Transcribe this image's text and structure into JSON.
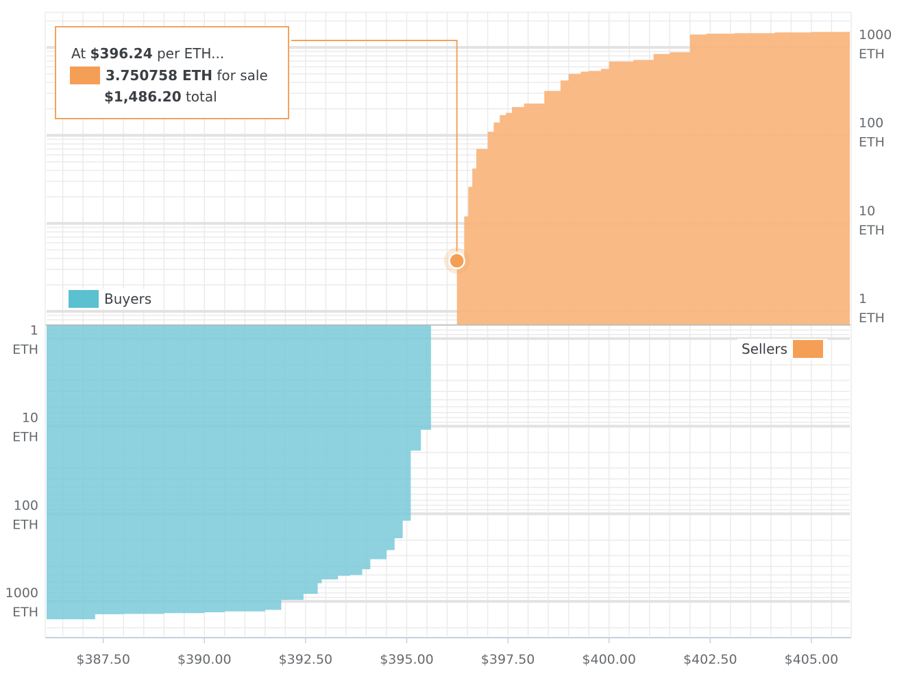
{
  "colors": {
    "buyers": "#79cad8",
    "buyers_swatch": "#5bc0d0",
    "sellers": "#f8b47c",
    "sellers_swatch": "#f59e55",
    "accent_line": "#f4a25c",
    "grid": "#ebebeb",
    "grid_major": "#e2e2e2"
  },
  "tooltip": {
    "prefix": "At",
    "price": "$396.24",
    "price_suffix": "per ETH...",
    "amount": "3.750758 ETH",
    "amount_suffix": "for sale",
    "total": "$1,486.20",
    "total_suffix": "total",
    "point_price": 396.24,
    "point_amount": 3.750758
  },
  "legend": {
    "buyers": "Buyers",
    "sellers": "Sellers"
  },
  "chart_data": {
    "type": "area",
    "title": "",
    "xlabel": "",
    "ylabel": "",
    "x_ticks": [
      "$387.50",
      "$390.00",
      "$392.50",
      "$395.00",
      "$397.50",
      "$400.00",
      "$402.50",
      "$405.00"
    ],
    "x_tick_values": [
      387.5,
      390.0,
      392.5,
      395.0,
      397.5,
      400.0,
      402.5,
      405.0
    ],
    "xlim": [
      386.1,
      405.95
    ],
    "y_scale": "log",
    "sellers_axis": {
      "position": "right",
      "ticks": [
        {
          "value": 1,
          "line1": "1",
          "line2": "ETH"
        },
        {
          "value": 10,
          "line1": "10",
          "line2": "ETH"
        },
        {
          "value": 100,
          "line1": "100",
          "line2": "ETH"
        },
        {
          "value": 1000,
          "line1": "1000",
          "line2": "ETH"
        }
      ],
      "ylim": [
        0.7,
        2500
      ]
    },
    "buyers_axis": {
      "position": "left",
      "inverted": true,
      "ticks": [
        {
          "value": 1,
          "line1": "1",
          "line2": "ETH"
        },
        {
          "value": 10,
          "line1": "10",
          "line2": "ETH"
        },
        {
          "value": 100,
          "line1": "100",
          "line2": "ETH"
        },
        {
          "value": 1000,
          "line1": "1000",
          "line2": "ETH"
        }
      ],
      "ylim": [
        0.7,
        2500
      ]
    },
    "series": [
      {
        "name": "Sellers",
        "step": "from price to the right, cumulative ETH",
        "points": [
          [
            396.24,
            3.75
          ],
          [
            396.42,
            12
          ],
          [
            396.52,
            26
          ],
          [
            396.62,
            42
          ],
          [
            396.72,
            70
          ],
          [
            397.0,
            110
          ],
          [
            397.15,
            140
          ],
          [
            397.3,
            170
          ],
          [
            397.45,
            180
          ],
          [
            397.6,
            210
          ],
          [
            397.9,
            230
          ],
          [
            398.4,
            320
          ],
          [
            398.8,
            420
          ],
          [
            399.0,
            500
          ],
          [
            399.3,
            530
          ],
          [
            399.5,
            540
          ],
          [
            399.8,
            570
          ],
          [
            400.0,
            690
          ],
          [
            400.6,
            720
          ],
          [
            401.1,
            840
          ],
          [
            401.5,
            880
          ],
          [
            402.0,
            1400
          ],
          [
            402.4,
            1430
          ],
          [
            403.1,
            1450
          ],
          [
            404.1,
            1480
          ],
          [
            405.0,
            1495
          ],
          [
            405.8,
            1500
          ]
        ]
      },
      {
        "name": "Buyers",
        "step": "from price to the left, cumulative ETH",
        "points": [
          [
            395.7,
            0.6
          ],
          [
            395.6,
            11
          ],
          [
            395.35,
            19
          ],
          [
            395.1,
            22
          ],
          [
            395.1,
            120
          ],
          [
            394.9,
            190
          ],
          [
            394.7,
            260
          ],
          [
            394.5,
            330
          ],
          [
            394.1,
            430
          ],
          [
            393.9,
            500
          ],
          [
            393.6,
            510
          ],
          [
            393.3,
            560
          ],
          [
            392.9,
            620
          ],
          [
            392.8,
            820
          ],
          [
            392.45,
            960
          ],
          [
            391.9,
            1250
          ],
          [
            391.5,
            1300
          ],
          [
            390.5,
            1330
          ],
          [
            390.0,
            1360
          ],
          [
            389.0,
            1390
          ],
          [
            388.0,
            1400
          ],
          [
            387.3,
            1600
          ],
          [
            386.1,
            1650
          ]
        ]
      }
    ]
  }
}
